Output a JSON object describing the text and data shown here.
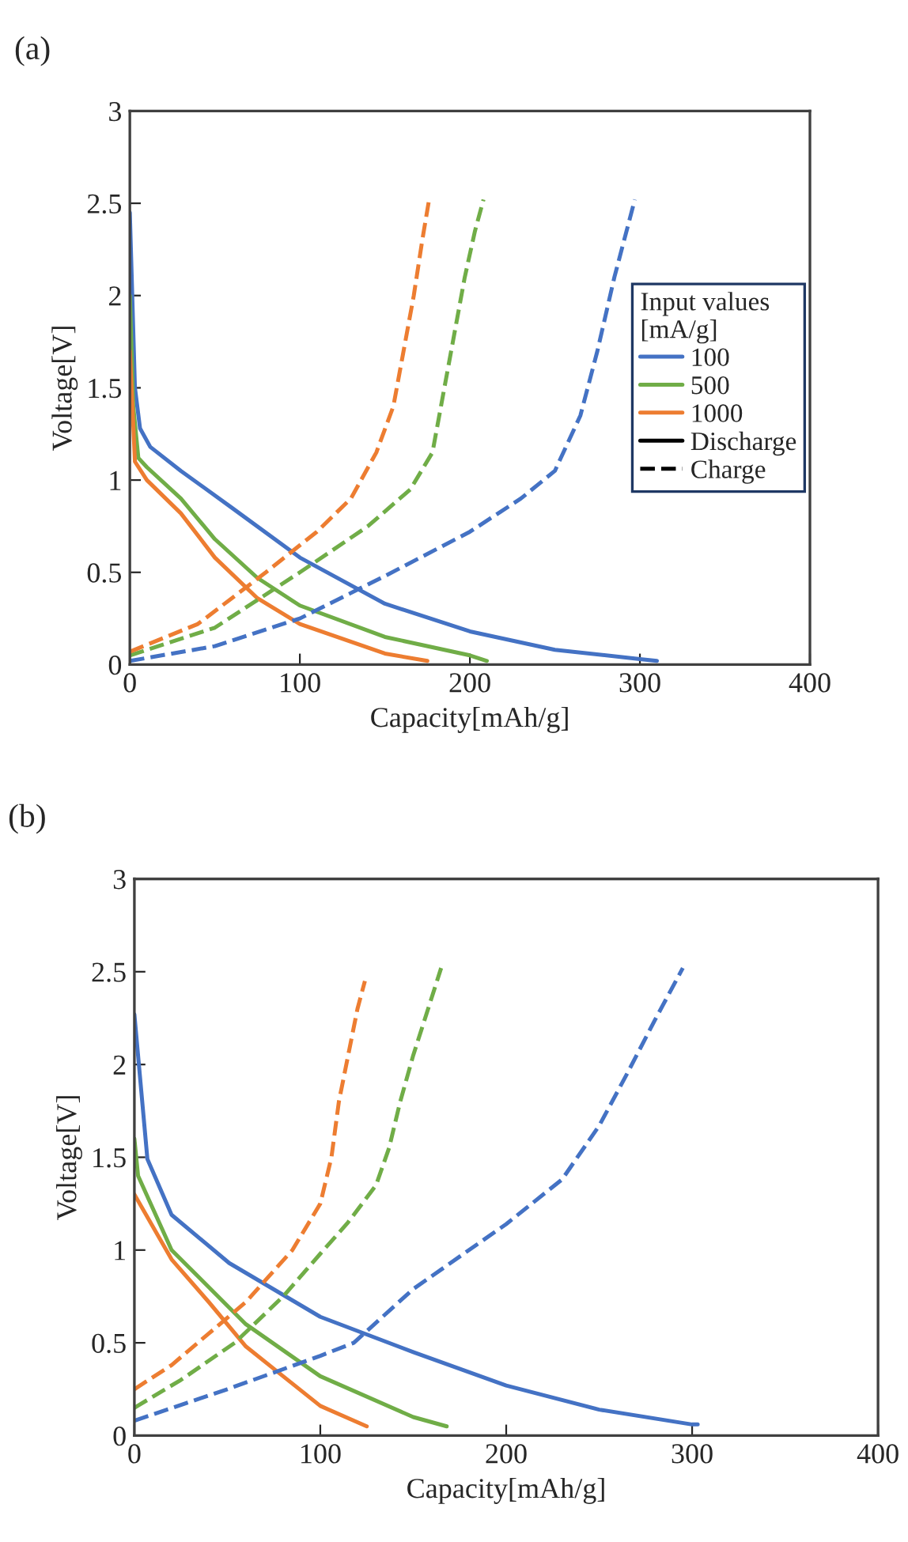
{
  "chart_data": [
    {
      "type": "line",
      "title": "(a)",
      "xlabel": "Capacity[mAh/g]",
      "ylabel": "Voltage[V]",
      "xlim": [
        0,
        400
      ],
      "ylim": [
        0,
        3
      ],
      "xticks": [
        0,
        100,
        200,
        300,
        400
      ],
      "yticks": [
        0,
        0.5,
        1,
        1.5,
        2,
        2.5,
        3
      ],
      "grid": false,
      "legend": "right",
      "legend_title": "Input values\n[mA/g]",
      "series": [
        {
          "name": "100",
          "color": "#4472c4",
          "line_style": "solid",
          "x": [
            0,
            3,
            6,
            12,
            30,
            60,
            100,
            150,
            200,
            250,
            300,
            310
          ],
          "values": [
            2.45,
            1.5,
            1.28,
            1.18,
            1.05,
            0.85,
            0.58,
            0.33,
            0.18,
            0.08,
            0.03,
            0.02
          ]
        },
        {
          "name": "500",
          "color": "#70ad47",
          "line_style": "solid",
          "x": [
            0,
            2,
            5,
            10,
            30,
            50,
            75,
            100,
            150,
            200,
            210
          ],
          "values": [
            2.0,
            1.4,
            1.12,
            1.07,
            0.9,
            0.68,
            0.47,
            0.32,
            0.15,
            0.05,
            0.02
          ]
        },
        {
          "name": "1000",
          "color": "#ed7d31",
          "line_style": "solid",
          "x": [
            0,
            3,
            10,
            30,
            50,
            75,
            100,
            150,
            175
          ],
          "values": [
            1.7,
            1.1,
            1.0,
            0.82,
            0.58,
            0.36,
            0.22,
            0.06,
            0.02
          ]
        },
        {
          "color": "#4472c4",
          "line_style": "dashed",
          "x": [
            0,
            50,
            100,
            150,
            200,
            230,
            250,
            265,
            275,
            285,
            297
          ],
          "values": [
            0.02,
            0.1,
            0.25,
            0.48,
            0.72,
            0.9,
            1.05,
            1.35,
            1.7,
            2.1,
            2.52
          ]
        },
        {
          "color": "#70ad47",
          "line_style": "dashed",
          "x": [
            0,
            50,
            100,
            140,
            165,
            178,
            183,
            190,
            197,
            203,
            208
          ],
          "values": [
            0.05,
            0.2,
            0.5,
            0.75,
            0.95,
            1.15,
            1.4,
            1.75,
            2.1,
            2.35,
            2.52
          ]
        },
        {
          "color": "#ed7d31",
          "line_style": "dashed",
          "x": [
            0,
            40,
            80,
            110,
            130,
            145,
            155,
            160,
            167,
            172,
            176
          ],
          "values": [
            0.07,
            0.22,
            0.5,
            0.72,
            0.9,
            1.15,
            1.4,
            1.65,
            2.0,
            2.3,
            2.52
          ]
        },
        {
          "name": "Discharge",
          "color": "#000000",
          "line_style": "solid"
        },
        {
          "name": "Charge",
          "color": "#000000",
          "line_style": "dashed"
        }
      ]
    },
    {
      "type": "line",
      "title": "(b)",
      "xlabel": "Capacity[mAh/g]",
      "ylabel": "Voltage[V]",
      "xlim": [
        0,
        400
      ],
      "ylim": [
        0,
        3
      ],
      "xticks": [
        0,
        100,
        200,
        300,
        400
      ],
      "yticks": [
        0,
        0.5,
        1,
        1.5,
        2,
        2.5,
        3
      ],
      "grid": false,
      "legend": false,
      "series": [
        {
          "color": "#4472c4",
          "line_style": "solid",
          "x": [
            0,
            7,
            20,
            51,
            100,
            150,
            200,
            250,
            300,
            303
          ],
          "values": [
            2.27,
            1.49,
            1.19,
            0.93,
            0.64,
            0.45,
            0.27,
            0.14,
            0.06,
            0.06
          ]
        },
        {
          "color": "#70ad47",
          "line_style": "solid",
          "x": [
            0,
            2,
            20,
            50,
            60,
            100,
            150,
            168
          ],
          "values": [
            1.6,
            1.4,
            1.0,
            0.7,
            0.6,
            0.32,
            0.1,
            0.05
          ]
        },
        {
          "color": "#ed7d31",
          "line_style": "solid",
          "x": [
            0,
            20,
            40,
            60,
            80,
            100,
            125
          ],
          "values": [
            1.3,
            0.95,
            0.72,
            0.48,
            0.32,
            0.16,
            0.05
          ]
        },
        {
          "color": "#4472c4",
          "line_style": "dashed",
          "x": [
            0,
            50,
            100,
            118,
            150,
            200,
            230,
            250,
            265,
            280,
            295
          ],
          "values": [
            0.08,
            0.25,
            0.43,
            0.5,
            0.79,
            1.14,
            1.38,
            1.67,
            1.95,
            2.24,
            2.52
          ]
        },
        {
          "color": "#70ad47",
          "line_style": "dashed",
          "x": [
            0,
            25,
            54,
            80,
            100,
            115,
            130,
            137,
            143,
            150,
            158,
            165
          ],
          "values": [
            0.15,
            0.3,
            0.5,
            0.75,
            0.98,
            1.15,
            1.35,
            1.55,
            1.8,
            2.05,
            2.3,
            2.52
          ]
        },
        {
          "color": "#ed7d31",
          "line_style": "dashed",
          "x": [
            0,
            20,
            40,
            60,
            85,
            100,
            106,
            110,
            116,
            120,
            124
          ],
          "values": [
            0.25,
            0.38,
            0.55,
            0.72,
            1.0,
            1.25,
            1.5,
            1.8,
            2.1,
            2.3,
            2.45
          ]
        }
      ]
    }
  ]
}
